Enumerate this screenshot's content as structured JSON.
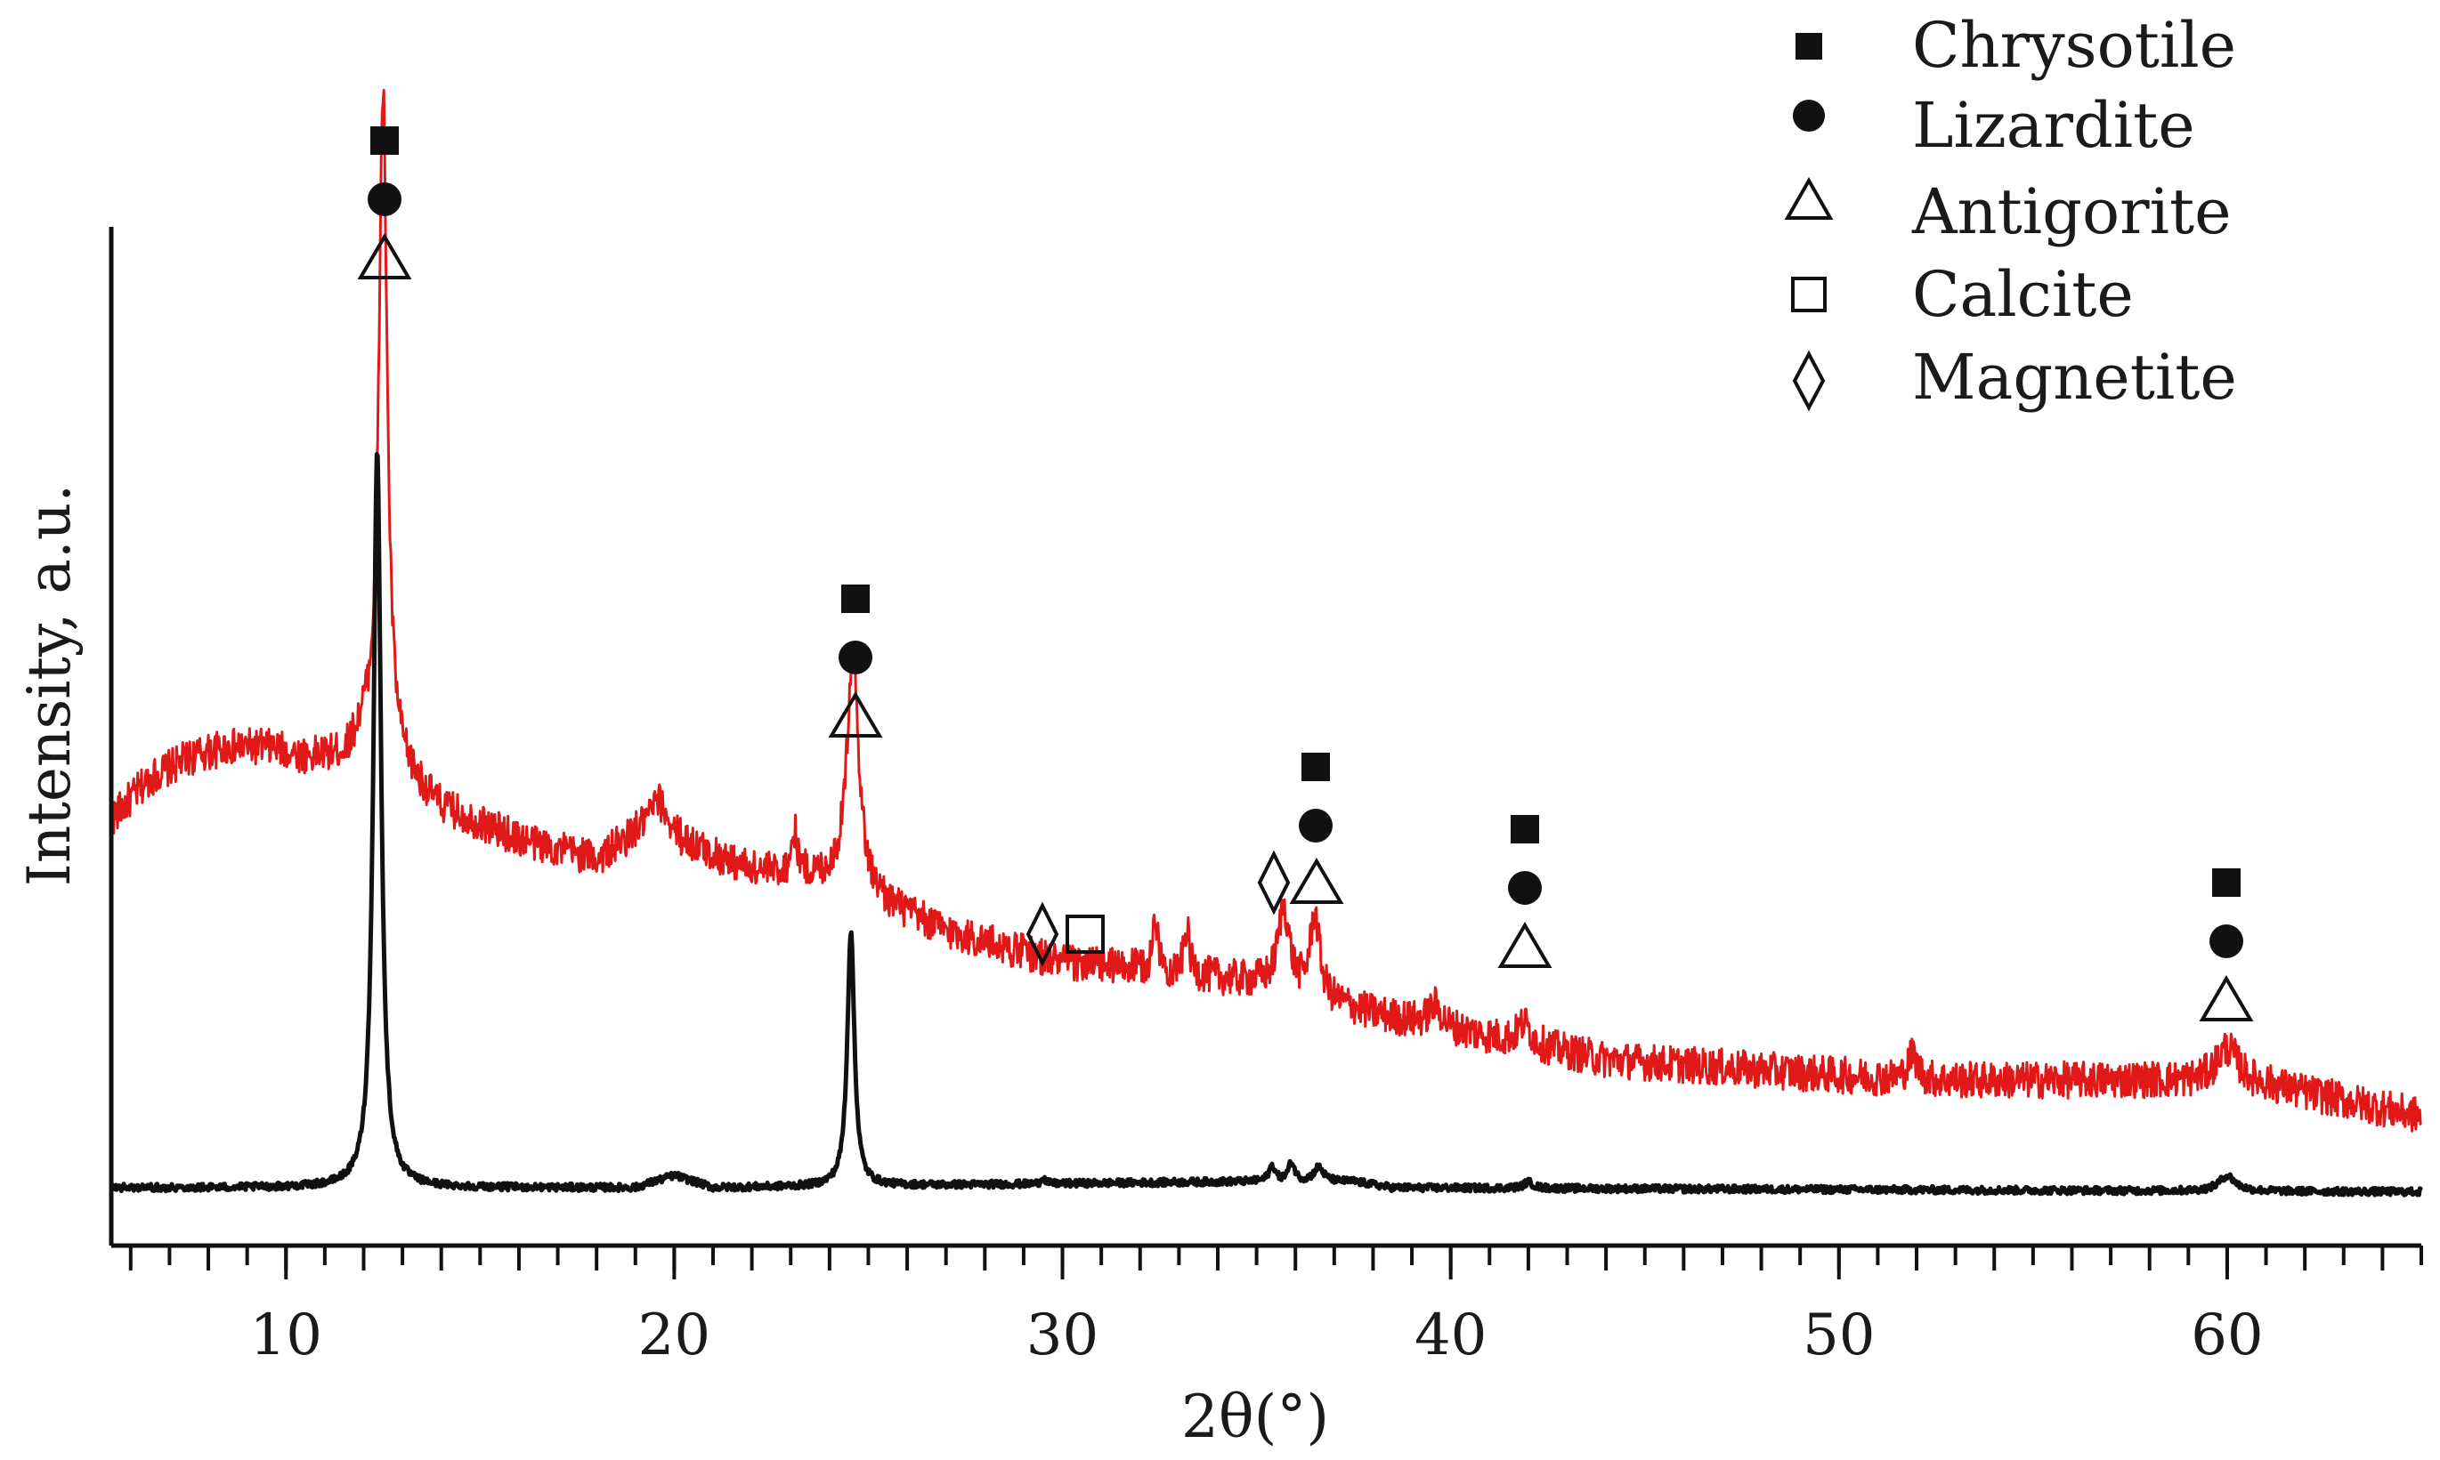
{
  "chart_data": {
    "type": "line",
    "xlabel": "2θ(°)",
    "ylabel": "Intensity, a.u.",
    "xlim": [
      5.5,
      65
    ],
    "x_ticks": [
      10,
      20,
      30,
      40,
      50,
      60
    ],
    "x_minor_step": 2,
    "grid": false,
    "legend_position": "top-right",
    "legend": [
      {
        "label": "Chrysotile",
        "marker": "filled-square"
      },
      {
        "label": "Lizardite",
        "marker": "filled-circle"
      },
      {
        "label": "Antigorite",
        "marker": "open-triangle"
      },
      {
        "label": "Calcite",
        "marker": "open-square"
      },
      {
        "label": "Magnetite",
        "marker": "open-diamond"
      }
    ],
    "series": [
      {
        "color": "#e01818",
        "noise": 0.018,
        "points": [
          [
            5.5,
            0.36
          ],
          [
            6.5,
            0.4
          ],
          [
            7.5,
            0.42
          ],
          [
            8.5,
            0.43
          ],
          [
            9.5,
            0.43
          ],
          [
            10.5,
            0.42
          ],
          [
            11.5,
            0.42
          ],
          [
            12.0,
            0.44
          ],
          [
            14.0,
            0.37
          ],
          [
            16.0,
            0.34
          ],
          [
            18.0,
            0.32
          ],
          [
            19.0,
            0.34
          ],
          [
            20.5,
            0.33
          ],
          [
            22.0,
            0.31
          ],
          [
            24.0,
            0.3
          ],
          [
            27.0,
            0.25
          ],
          [
            30.0,
            0.22
          ],
          [
            33.0,
            0.21
          ],
          [
            35.0,
            0.2
          ],
          [
            38.0,
            0.17
          ],
          [
            40.0,
            0.155
          ],
          [
            44.0,
            0.125
          ],
          [
            48.0,
            0.115
          ],
          [
            52.0,
            0.105
          ],
          [
            56.0,
            0.105
          ],
          [
            58.0,
            0.105
          ],
          [
            61.0,
            0.1
          ],
          [
            63.0,
            0.085
          ],
          [
            65.0,
            0.07
          ]
        ],
        "peaks": [
          {
            "x": 12.5,
            "height": 0.65,
            "width": 0.13
          },
          {
            "x": 19.6,
            "height": 0.04,
            "width": 0.35
          },
          {
            "x": 23.1,
            "height": 0.04,
            "width": 0.1
          },
          {
            "x": 24.6,
            "height": 0.24,
            "width": 0.18
          },
          {
            "x": 32.4,
            "height": 0.05,
            "width": 0.08
          },
          {
            "x": 33.2,
            "height": 0.045,
            "width": 0.08
          },
          {
            "x": 35.7,
            "height": 0.08,
            "width": 0.18
          },
          {
            "x": 36.5,
            "height": 0.08,
            "width": 0.15
          },
          {
            "x": 39.6,
            "height": 0.02,
            "width": 0.2
          },
          {
            "x": 41.9,
            "height": 0.02,
            "width": 0.2
          },
          {
            "x": 51.9,
            "height": 0.025,
            "width": 0.15
          },
          {
            "x": 60.0,
            "height": 0.035,
            "width": 0.35
          }
        ]
      },
      {
        "color": "#111111",
        "noise": 0.0035,
        "points": [
          [
            5.5,
            0.0
          ],
          [
            19.0,
            0.0
          ],
          [
            20.0,
            0.012
          ],
          [
            21.0,
            0.0
          ],
          [
            34.5,
            0.006
          ],
          [
            37.5,
            0.006
          ],
          [
            38.5,
            0.0
          ],
          [
            65.0,
            -0.004
          ]
        ],
        "peaks": [
          {
            "x": 12.35,
            "height": 0.72,
            "width": 0.12
          },
          {
            "x": 24.55,
            "height": 0.25,
            "width": 0.11
          },
          {
            "x": 29.5,
            "height": 0.008,
            "width": 0.05
          },
          {
            "x": 35.4,
            "height": 0.015,
            "width": 0.1
          },
          {
            "x": 35.9,
            "height": 0.018,
            "width": 0.1
          },
          {
            "x": 36.6,
            "height": 0.014,
            "width": 0.15
          },
          {
            "x": 42.0,
            "height": 0.006,
            "width": 0.15
          },
          {
            "x": 60.0,
            "height": 0.015,
            "width": 0.25
          }
        ]
      }
    ],
    "annotations": [
      {
        "x": 12.5,
        "markers": [
          "filled-square",
          "filled-circle",
          "open-triangle"
        ],
        "level": 0.97
      },
      {
        "x": 24.6,
        "markers": [
          "filled-square",
          "filled-circle",
          "open-triangle"
        ],
        "level": 0.47
      },
      {
        "x": 30.0,
        "markers": [
          "open-diamond",
          "open-square"
        ],
        "level": 0.3,
        "inline": true
      },
      {
        "x": 36.0,
        "markers": [
          "filled-square",
          "filled-circle"
        ],
        "level": 0.42
      },
      {
        "x": 35.5,
        "markers": [
          "open-diamond",
          "open-triangle"
        ],
        "level": 0.35,
        "inline": true
      },
      {
        "x": 42.0,
        "markers": [
          "filled-square",
          "filled-circle",
          "open-triangle"
        ],
        "level": 0.4
      },
      {
        "x": 60.0,
        "markers": [
          "filled-square",
          "filled-circle",
          "open-triangle"
        ],
        "level": 0.35
      }
    ]
  }
}
